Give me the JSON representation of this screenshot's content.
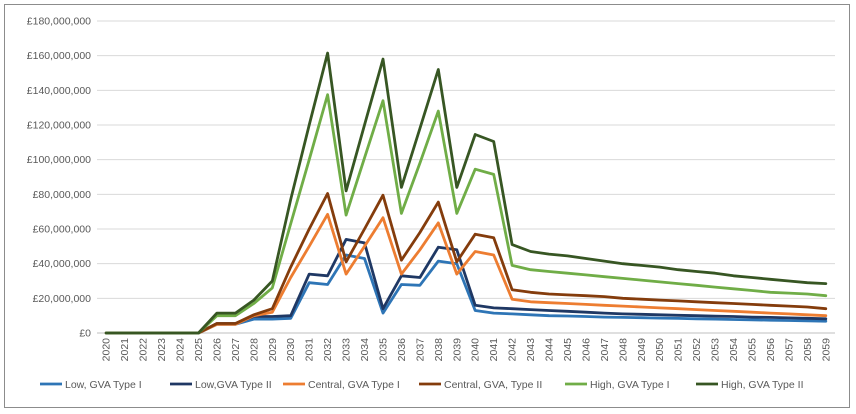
{
  "chart_data": {
    "type": "line",
    "title": "",
    "xlabel": "",
    "ylabel": "",
    "ylim": [
      0,
      180000000
    ],
    "y_ticks": [
      0,
      20000000,
      40000000,
      60000000,
      80000000,
      100000000,
      120000000,
      140000000,
      160000000,
      180000000
    ],
    "y_tick_labels": [
      "£0",
      "£20,000,000",
      "£40,000,000",
      "£60,000,000",
      "£80,000,000",
      "£100,000,000",
      "£120,000,000",
      "£140,000,000",
      "£160,000,000",
      "£180,000,000"
    ],
    "grid": "horizontal",
    "legend_position": "bottom",
    "x": [
      "2020",
      "2021",
      "2022",
      "2023",
      "2024",
      "2025",
      "2026",
      "2027",
      "2028",
      "2029",
      "2030",
      "2031",
      "2032",
      "2033",
      "2034",
      "2035",
      "2036",
      "2037",
      "2038",
      "2039",
      "2040",
      "2041",
      "2042",
      "2043",
      "2044",
      "2045",
      "2046",
      "2047",
      "2048",
      "2049",
      "2050",
      "2051",
      "2052",
      "2053",
      "2054",
      "2055",
      "2056",
      "2057",
      "2058",
      "2059"
    ],
    "series": [
      {
        "name": "Low, GVA Type I",
        "color": "#2e75b6",
        "values": [
          0,
          0,
          0,
          0,
          0,
          0,
          5000000,
          5000000,
          8000000,
          8000000,
          8500000,
          29000000,
          28000000,
          45000000,
          43000000,
          11500000,
          28000000,
          27500000,
          41500000,
          40000000,
          13000000,
          11500000,
          11000000,
          10500000,
          10000000,
          9800000,
          9500000,
          9200000,
          9000000,
          8800000,
          8600000,
          8400000,
          8200000,
          8000000,
          7800000,
          7600000,
          7400000,
          7200000,
          7000000,
          6800000
        ]
      },
      {
        "name": "Low,GVA Type II",
        "color": "#1f3864",
        "values": [
          0,
          0,
          0,
          0,
          0,
          0,
          5500000,
          5500000,
          9500000,
          9500000,
          10000000,
          34000000,
          33000000,
          54000000,
          52000000,
          14000000,
          33000000,
          32000000,
          49500000,
          48000000,
          16000000,
          14500000,
          14000000,
          13500000,
          13000000,
          12500000,
          12000000,
          11500000,
          11000000,
          10800000,
          10500000,
          10200000,
          10000000,
          9700000,
          9500000,
          9200000,
          9000000,
          8700000,
          8500000,
          8200000
        ]
      },
      {
        "name": "Central, GVA Type I",
        "color": "#ed7d31",
        "values": [
          0,
          0,
          0,
          0,
          0,
          0,
          5000000,
          5000000,
          10000000,
          12000000,
          32000000,
          50000000,
          68500000,
          34000000,
          50000000,
          66500000,
          34000000,
          48000000,
          63500000,
          34000000,
          47000000,
          45000000,
          19500000,
          18000000,
          17500000,
          17000000,
          16500000,
          16000000,
          15500000,
          15000000,
          14500000,
          14000000,
          13500000,
          13000000,
          12500000,
          12000000,
          11500000,
          11000000,
          10500000,
          10000000
        ]
      },
      {
        "name": "Central, GVA, Type II",
        "color": "#843c0c",
        "values": [
          0,
          0,
          0,
          0,
          0,
          0,
          5500000,
          5500000,
          10500000,
          14000000,
          38000000,
          60000000,
          80500000,
          41000000,
          60000000,
          79500000,
          42000000,
          58000000,
          75500000,
          41000000,
          57000000,
          55000000,
          25000000,
          23500000,
          22500000,
          22000000,
          21500000,
          21000000,
          20000000,
          19500000,
          19000000,
          18500000,
          18000000,
          17500000,
          17000000,
          16500000,
          16000000,
          15500000,
          15000000,
          14000000
        ]
      },
      {
        "name": "High, GVA Type I",
        "color": "#70ad47",
        "values": [
          0,
          0,
          0,
          0,
          0,
          0,
          10000000,
          10000000,
          17000000,
          26000000,
          63000000,
          100000000,
          137500000,
          68000000,
          101000000,
          134000000,
          69000000,
          98000000,
          128000000,
          69000000,
          94500000,
          91500000,
          39000000,
          36500000,
          35500000,
          34500000,
          33500000,
          32500000,
          31500000,
          30500000,
          29500000,
          28500000,
          27500000,
          26500000,
          25500000,
          24500000,
          23500000,
          23000000,
          22500000,
          21500000
        ]
      },
      {
        "name": "High, GVA Type II",
        "color": "#375623",
        "values": [
          0,
          0,
          0,
          0,
          0,
          0,
          11500000,
          11500000,
          19000000,
          30000000,
          77000000,
          120000000,
          161500000,
          82000000,
          120000000,
          158000000,
          84000000,
          118000000,
          152000000,
          84000000,
          114500000,
          110500000,
          51000000,
          47000000,
          45500000,
          44500000,
          43000000,
          41500000,
          40000000,
          39000000,
          38000000,
          36500000,
          35500000,
          34500000,
          33000000,
          32000000,
          31000000,
          30000000,
          29000000,
          28500000
        ]
      }
    ]
  }
}
